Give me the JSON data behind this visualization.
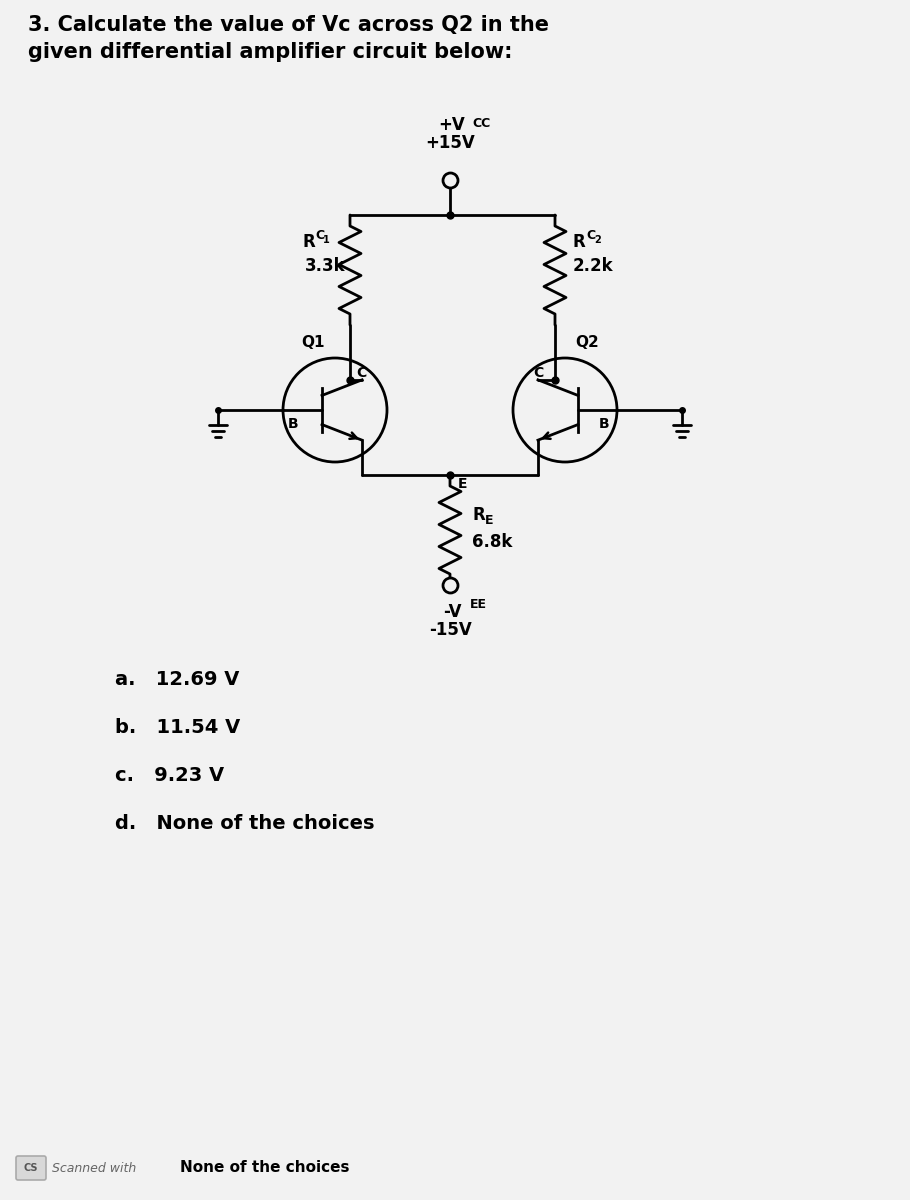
{
  "title_line1": "3. Calculate the value of Vc across Q2 in the",
  "title_line2": "given differential amplifier circuit below:",
  "vcc_text1": "+V",
  "vcc_text2": "CC",
  "vcc_text3": "+15V",
  "vee_text1": "-V",
  "vee_text2": "EE",
  "vee_text3": "-15V",
  "rc1_r": "R",
  "rc1_sub": "C",
  "rc1_subsub": "1",
  "rc1_val": "3.3k",
  "rc2_r": "R",
  "rc2_sub": "C",
  "rc2_subsub": "2",
  "rc2_val": "2.2k",
  "re_r": "R",
  "re_sub": "E",
  "re_val": "6.8k",
  "q1_label": "Q1",
  "q2_label": "Q2",
  "label_c": "C",
  "label_b": "B",
  "label_e": "E",
  "choice_a": "a.   12.69 V",
  "choice_b": "b.   11.54 V",
  "choice_c": "c.   9.23 V",
  "choice_d": "d.   None of the choices",
  "cs_text": "CS Scanned with",
  "none_text": "None of the choices",
  "bg_color": "#f2f2f2",
  "line_color": "#000000",
  "text_color": "#000000",
  "font_size_title": 15,
  "font_size_body": 11,
  "font_size_choices": 14
}
